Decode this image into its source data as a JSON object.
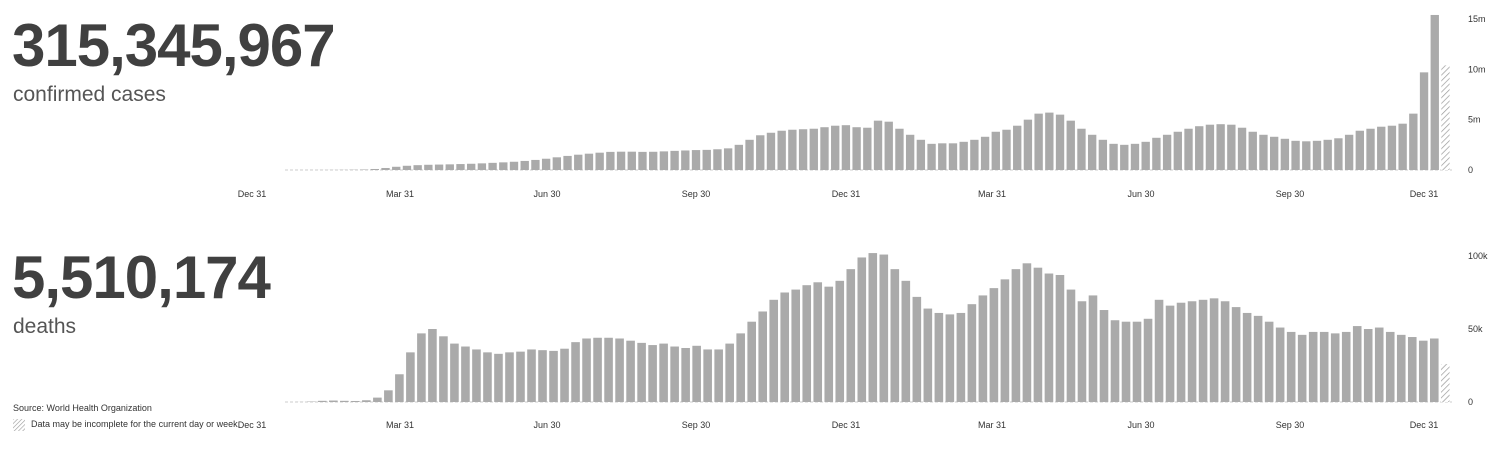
{
  "summary": {
    "cases_total": "315,345,967",
    "cases_label": "confirmed cases",
    "deaths_total": "5,510,174",
    "deaths_label": "deaths"
  },
  "footer": {
    "source_prefix": "Source:",
    "source_name": "World Health Organization",
    "incomplete_note": "Data may be incomplete for the current day or week."
  },
  "colors": {
    "bar": "#aaaaaa",
    "baseline": "#cccccc",
    "hatch": "#999999"
  },
  "chart_data": [
    {
      "type": "bar",
      "name": "confirmed_cases_weekly",
      "x_ticks": [
        "Dec 31",
        "Mar 31",
        "Jun 30",
        "Sep 30",
        "Dec 31",
        "Mar 31",
        "Jun 30",
        "Sep 30",
        "Dec 31"
      ],
      "y_ticks": [
        "0",
        "5m",
        "10m",
        "15m"
      ],
      "ylim": [
        0,
        15000000
      ],
      "last_bar_incomplete": true,
      "values": [
        0,
        1000,
        2000,
        5000,
        8000,
        15000,
        30000,
        50000,
        100000,
        200000,
        320000,
        420000,
        480000,
        520000,
        540000,
        560000,
        590000,
        620000,
        660000,
        710000,
        760000,
        820000,
        900000,
        1000000,
        1120000,
        1260000,
        1400000,
        1520000,
        1620000,
        1720000,
        1800000,
        1820000,
        1820000,
        1800000,
        1810000,
        1850000,
        1900000,
        1940000,
        1980000,
        2000000,
        2060000,
        2150000,
        2500000,
        3000000,
        3450000,
        3700000,
        3900000,
        4000000,
        4050000,
        4100000,
        4250000,
        4400000,
        4450000,
        4250000,
        4200000,
        4900000,
        4800000,
        4100000,
        3500000,
        3000000,
        2600000,
        2650000,
        2650000,
        2800000,
        3000000,
        3300000,
        3800000,
        4000000,
        4400000,
        5000000,
        5600000,
        5700000,
        5500000,
        4900000,
        4100000,
        3500000,
        3000000,
        2600000,
        2500000,
        2600000,
        2800000,
        3200000,
        3500000,
        3800000,
        4100000,
        4350000,
        4500000,
        4550000,
        4500000,
        4200000,
        3800000,
        3500000,
        3300000,
        3100000,
        2900000,
        2850000,
        2900000,
        3000000,
        3150000,
        3500000,
        3900000,
        4100000,
        4300000,
        4400000,
        4600000,
        5600000,
        9700000,
        15400000,
        10400000
      ]
    },
    {
      "type": "bar",
      "name": "deaths_weekly",
      "x_ticks": [
        "Dec 31",
        "Mar 31",
        "Jun 30",
        "Sep 30",
        "Dec 31",
        "Mar 31",
        "Jun 30",
        "Sep 30",
        "Dec 31"
      ],
      "y_ticks": [
        "0",
        "50k",
        "100k"
      ],
      "ylim": [
        0,
        100000
      ],
      "last_bar_incomplete": true,
      "values": [
        0,
        50,
        300,
        800,
        1000,
        800,
        700,
        1200,
        3000,
        8000,
        19000,
        34000,
        47000,
        50000,
        45000,
        40000,
        38000,
        36000,
        34000,
        33000,
        34000,
        34500,
        36000,
        35500,
        35000,
        36500,
        41000,
        43500,
        44000,
        44000,
        43500,
        42000,
        40500,
        39000,
        40000,
        38000,
        37000,
        38500,
        36000,
        36000,
        40000,
        47000,
        55000,
        62000,
        70000,
        75000,
        77000,
        80000,
        82000,
        79000,
        83000,
        91000,
        99000,
        102000,
        101000,
        91000,
        83000,
        72000,
        64000,
        61000,
        60000,
        61000,
        67000,
        73000,
        78000,
        84000,
        91000,
        95000,
        92000,
        88000,
        87000,
        77000,
        69000,
        73000,
        63000,
        56000,
        55000,
        55000,
        57000,
        70000,
        66000,
        68000,
        69000,
        70000,
        71000,
        69000,
        65000,
        61000,
        59000,
        55000,
        51000,
        48000,
        46000,
        48000,
        48000,
        47000,
        48000,
        52000,
        50000,
        51000,
        48000,
        46000,
        44500,
        42000,
        43500,
        26000
      ]
    }
  ]
}
